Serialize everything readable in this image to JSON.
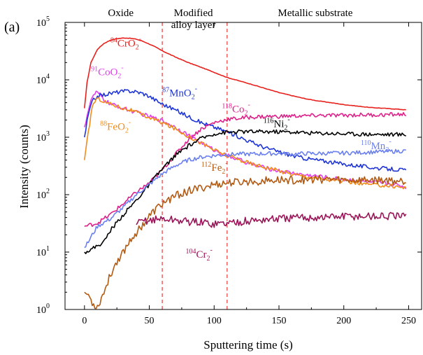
{
  "panel_label": "(a)",
  "chart_data": {
    "type": "line",
    "xlabel": "Sputtering time (s)",
    "ylabel": "Intensity (counts)",
    "xlim": [
      -15,
      260
    ],
    "ylim": [
      1,
      100000
    ],
    "yscale": "log",
    "x_ticks": [
      "0",
      "50",
      "100",
      "150",
      "200",
      "250"
    ],
    "y_ticks": [
      {
        "base": "10",
        "exp": "0",
        "value": 1
      },
      {
        "base": "10",
        "exp": "1",
        "value": 10
      },
      {
        "base": "10",
        "exp": "2",
        "value": 100
      },
      {
        "base": "10",
        "exp": "3",
        "value": 1000
      },
      {
        "base": "10",
        "exp": "4",
        "value": 10000
      },
      {
        "base": "10",
        "exp": "5",
        "value": 100000
      }
    ],
    "grid": false,
    "regions": [
      {
        "label": "Oxide",
        "x_center": 28
      },
      {
        "label_lines": [
          "Modified",
          "alloy layer"
        ],
        "x_center": 84
      },
      {
        "label": "Metallic substrate",
        "x_center": 178
      }
    ],
    "boundaries": [
      60,
      110
    ],
    "boundary_color": "#e8393a",
    "series": [
      {
        "mass": "84",
        "species": "CrO",
        "sub": "2",
        "charge": "-",
        "color": "#e8201c",
        "label_x": 20,
        "label_y": 38000,
        "points": [
          [
            0,
            3200
          ],
          [
            2,
            9000
          ],
          [
            5,
            20000
          ],
          [
            10,
            34000
          ],
          [
            15,
            43000
          ],
          [
            20,
            49000
          ],
          [
            25,
            52000
          ],
          [
            30,
            53500
          ],
          [
            35,
            53000
          ],
          [
            40,
            51000
          ],
          [
            45,
            47000
          ],
          [
            50,
            42000
          ],
          [
            55,
            37000
          ],
          [
            60,
            32000
          ],
          [
            70,
            25000
          ],
          [
            80,
            20000
          ],
          [
            90,
            16500
          ],
          [
            100,
            13500
          ],
          [
            110,
            11000
          ],
          [
            120,
            9500
          ],
          [
            130,
            8200
          ],
          [
            140,
            7000
          ],
          [
            150,
            6000
          ],
          [
            160,
            5300
          ],
          [
            170,
            4700
          ],
          [
            180,
            4300
          ],
          [
            190,
            4000
          ],
          [
            200,
            3700
          ],
          [
            210,
            3500
          ],
          [
            220,
            3300
          ],
          [
            230,
            3200
          ],
          [
            240,
            3100
          ],
          [
            248,
            3000
          ]
        ]
      },
      {
        "mass": "91",
        "species": "CoO",
        "sub": "2",
        "charge": "-",
        "color": "#e040e8",
        "label_x": 5,
        "label_y": 12000,
        "points": [
          [
            0,
            1500
          ],
          [
            3,
            3000
          ],
          [
            6,
            5000
          ],
          [
            9,
            6000
          ],
          [
            12,
            5500
          ],
          [
            15,
            4500
          ],
          [
            20,
            3800
          ],
          [
            30,
            3200
          ],
          [
            40,
            2700
          ],
          [
            50,
            2300
          ],
          [
            60,
            1950
          ],
          [
            70,
            1500
          ],
          [
            80,
            1100
          ],
          [
            90,
            800
          ],
          [
            100,
            600
          ],
          [
            110,
            480
          ],
          [
            120,
            400
          ],
          [
            130,
            330
          ],
          [
            140,
            290
          ],
          [
            150,
            260
          ],
          [
            160,
            240
          ],
          [
            170,
            220
          ],
          [
            180,
            210
          ],
          [
            190,
            195
          ],
          [
            200,
            185
          ],
          [
            210,
            175
          ],
          [
            220,
            165
          ],
          [
            230,
            160
          ],
          [
            240,
            150
          ],
          [
            248,
            135
          ]
        ]
      },
      {
        "mass": "87",
        "species": "MnO",
        "sub": "2",
        "charge": "-",
        "color": "#1f35d6",
        "label_x": 60,
        "label_y": 5200,
        "points": [
          [
            0,
            1000
          ],
          [
            3,
            2500
          ],
          [
            6,
            4200
          ],
          [
            10,
            5200
          ],
          [
            15,
            5500
          ],
          [
            20,
            5800
          ],
          [
            25,
            6100
          ],
          [
            30,
            6300
          ],
          [
            35,
            6400
          ],
          [
            40,
            6200
          ],
          [
            45,
            5800
          ],
          [
            50,
            5200
          ],
          [
            55,
            4400
          ],
          [
            60,
            3800
          ],
          [
            70,
            3000
          ],
          [
            80,
            2300
          ],
          [
            90,
            1800
          ],
          [
            100,
            1500
          ],
          [
            110,
            1250
          ],
          [
            120,
            1000
          ],
          [
            130,
            800
          ],
          [
            140,
            650
          ],
          [
            150,
            560
          ],
          [
            160,
            480
          ],
          [
            170,
            430
          ],
          [
            180,
            400
          ],
          [
            190,
            370
          ],
          [
            200,
            340
          ],
          [
            210,
            320
          ],
          [
            220,
            300
          ],
          [
            230,
            285
          ],
          [
            240,
            275
          ],
          [
            248,
            265
          ]
        ]
      },
      {
        "mass": "118",
        "species": "Co",
        "sub": "2",
        "charge": "-",
        "color": "#e0208a",
        "label_x": 106,
        "label_y": 2700,
        "points": [
          [
            0,
            28
          ],
          [
            10,
            32
          ],
          [
            20,
            45
          ],
          [
            30,
            70
          ],
          [
            40,
            110
          ],
          [
            50,
            160
          ],
          [
            60,
            270
          ],
          [
            70,
            500
          ],
          [
            80,
            900
          ],
          [
            90,
            1400
          ],
          [
            100,
            1800
          ],
          [
            110,
            2050
          ],
          [
            120,
            2150
          ],
          [
            130,
            2250
          ],
          [
            140,
            2300
          ],
          [
            150,
            2300
          ],
          [
            160,
            2350
          ],
          [
            170,
            2350
          ],
          [
            180,
            2400
          ],
          [
            190,
            2400
          ],
          [
            200,
            2400
          ],
          [
            210,
            2450
          ],
          [
            220,
            2450
          ],
          [
            230,
            2450
          ],
          [
            240,
            2500
          ],
          [
            248,
            2500
          ]
        ]
      },
      {
        "mass": "88",
        "species": "FeO",
        "sub": "2",
        "charge": "-",
        "color": "#f08c1c",
        "label_x": 12,
        "label_y": 1350,
        "points": [
          [
            0,
            400
          ],
          [
            3,
            1200
          ],
          [
            6,
            3500
          ],
          [
            9,
            4600
          ],
          [
            12,
            4600
          ],
          [
            15,
            4200
          ],
          [
            20,
            3800
          ],
          [
            25,
            3500
          ],
          [
            30,
            3200
          ],
          [
            35,
            3000
          ],
          [
            40,
            2700
          ],
          [
            50,
            2200
          ],
          [
            60,
            1800
          ],
          [
            70,
            1400
          ],
          [
            80,
            1050
          ],
          [
            90,
            800
          ],
          [
            100,
            600
          ],
          [
            110,
            480
          ],
          [
            120,
            400
          ],
          [
            130,
            340
          ],
          [
            140,
            300
          ],
          [
            150,
            260
          ],
          [
            160,
            230
          ],
          [
            170,
            210
          ],
          [
            180,
            195
          ],
          [
            190,
            180
          ],
          [
            200,
            170
          ],
          [
            210,
            160
          ],
          [
            220,
            150
          ],
          [
            230,
            145
          ],
          [
            240,
            140
          ],
          [
            248,
            130
          ]
        ]
      },
      {
        "mass": "116",
        "species": "Ni",
        "sub": "2",
        "charge": "-",
        "color": "#000000",
        "label_x": 138,
        "label_y": 1500,
        "points": [
          [
            0,
            10
          ],
          [
            5,
            11
          ],
          [
            10,
            13
          ],
          [
            15,
            15
          ],
          [
            20,
            24
          ],
          [
            30,
            45
          ],
          [
            40,
            80
          ],
          [
            50,
            150
          ],
          [
            60,
            280
          ],
          [
            70,
            480
          ],
          [
            80,
            700
          ],
          [
            90,
            950
          ],
          [
            100,
            1150
          ],
          [
            110,
            1220
          ],
          [
            120,
            1250
          ],
          [
            130,
            1250
          ],
          [
            140,
            1250
          ],
          [
            150,
            1250
          ],
          [
            160,
            1230
          ],
          [
            170,
            1200
          ],
          [
            180,
            1180
          ],
          [
            190,
            1170
          ],
          [
            200,
            1150
          ],
          [
            210,
            1140
          ],
          [
            220,
            1130
          ],
          [
            230,
            1120
          ],
          [
            240,
            1120
          ],
          [
            248,
            1110
          ]
        ]
      },
      {
        "mass": "110",
        "species": "Mn",
        "sub": "2",
        "charge": "-",
        "color": "#6a7ff0",
        "label_x": 213,
        "label_y": 620,
        "points": [
          [
            0,
            12
          ],
          [
            3,
            15
          ],
          [
            6,
            20
          ],
          [
            10,
            28
          ],
          [
            20,
            38
          ],
          [
            30,
            60
          ],
          [
            40,
            100
          ],
          [
            50,
            150
          ],
          [
            60,
            230
          ],
          [
            70,
            320
          ],
          [
            80,
            400
          ],
          [
            90,
            450
          ],
          [
            100,
            480
          ],
          [
            110,
            500
          ],
          [
            120,
            510
          ],
          [
            130,
            510
          ],
          [
            140,
            520
          ],
          [
            150,
            520
          ],
          [
            160,
            510
          ],
          [
            170,
            520
          ],
          [
            180,
            520
          ],
          [
            190,
            530
          ],
          [
            200,
            530
          ],
          [
            210,
            540
          ],
          [
            220,
            550
          ],
          [
            230,
            560
          ],
          [
            240,
            570
          ],
          [
            248,
            580
          ]
        ]
      },
      {
        "mass": "112",
        "species": "Fe",
        "sub": "2",
        "charge": "-",
        "color": "#b35a12",
        "label_x": 90,
        "label_y": 260,
        "points": [
          [
            0,
            2
          ],
          [
            3,
            1.8
          ],
          [
            6,
            1.3
          ],
          [
            10,
            1.1
          ],
          [
            15,
            2
          ],
          [
            20,
            4
          ],
          [
            25,
            7
          ],
          [
            30,
            10
          ],
          [
            35,
            16
          ],
          [
            40,
            22
          ],
          [
            45,
            30
          ],
          [
            50,
            42
          ],
          [
            55,
            55
          ],
          [
            60,
            70
          ],
          [
            70,
            95
          ],
          [
            80,
            115
          ],
          [
            90,
            130
          ],
          [
            100,
            150
          ],
          [
            110,
            160
          ],
          [
            120,
            165
          ],
          [
            130,
            170
          ],
          [
            140,
            175
          ],
          [
            150,
            180
          ],
          [
            160,
            180
          ],
          [
            170,
            180
          ],
          [
            180,
            185
          ],
          [
            190,
            185
          ],
          [
            200,
            180
          ],
          [
            210,
            180
          ],
          [
            220,
            180
          ],
          [
            230,
            180
          ],
          [
            240,
            175
          ],
          [
            248,
            175
          ]
        ]
      },
      {
        "mass": "104",
        "species": "Cr",
        "sub": "2",
        "charge": "-",
        "color": "#9c1458",
        "label_x": 78,
        "label_y": 8,
        "points": [
          [
            40,
            30
          ],
          [
            45,
            35
          ],
          [
            50,
            36
          ],
          [
            55,
            37
          ],
          [
            60,
            38
          ],
          [
            70,
            36
          ],
          [
            80,
            34
          ],
          [
            90,
            33
          ],
          [
            100,
            31
          ],
          [
            110,
            32
          ],
          [
            120,
            34
          ],
          [
            130,
            35
          ],
          [
            140,
            37
          ],
          [
            150,
            38
          ],
          [
            160,
            39
          ],
          [
            170,
            40
          ],
          [
            180,
            40
          ],
          [
            190,
            41
          ],
          [
            200,
            42
          ],
          [
            210,
            42
          ],
          [
            220,
            42
          ],
          [
            230,
            42
          ],
          [
            240,
            42
          ],
          [
            248,
            41
          ]
        ]
      }
    ]
  }
}
